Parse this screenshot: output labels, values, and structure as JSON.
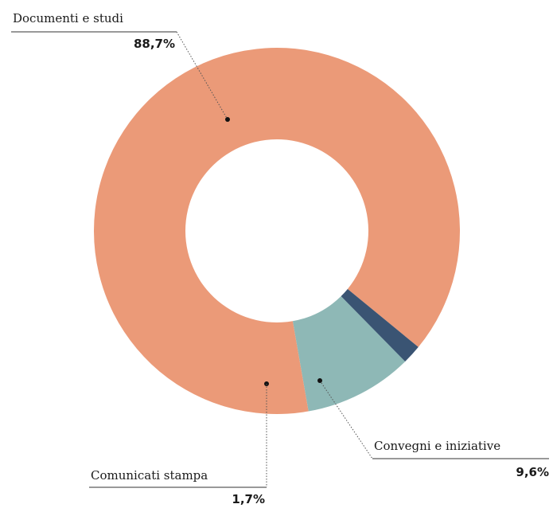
{
  "chart_data": {
    "type": "pie",
    "donut": true,
    "slices": [
      {
        "label": "Documenti e studi",
        "value": 88.7,
        "display": "88,7%",
        "color": "#EB9A78"
      },
      {
        "label": "Convegni e iniziative",
        "value": 9.6,
        "display": "9,6%",
        "color": "#8EB8B6"
      },
      {
        "label": "Comunicati stampa",
        "value": 1.7,
        "display": "1,7%",
        "color": "#3A5473"
      }
    ],
    "title": "",
    "legend": "none"
  }
}
